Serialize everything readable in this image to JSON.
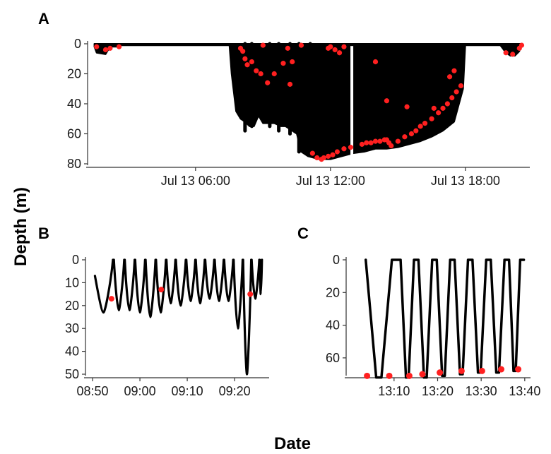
{
  "figure": {
    "ylabel": "Depth (m)",
    "xlabel": "Date"
  },
  "colors": {
    "line": "#000000",
    "point": "#ff2020"
  },
  "chart_data": [
    {
      "panel": "A",
      "type": "line",
      "x_unit": "hours since 00:00 on Jul 13",
      "xlim": [
        1.2,
        20.8
      ],
      "ylim": [
        0,
        80
      ],
      "y_reversed": true,
      "xticks": [
        6,
        12,
        18
      ],
      "xtick_labels": [
        "Jul 13 06:00",
        "Jul 13 12:00",
        "Jul 13 18:00"
      ],
      "yticks": [
        0,
        20,
        40,
        60,
        80
      ],
      "ytick_labels": [
        "0",
        "20",
        "40",
        "60",
        "80"
      ],
      "envelope": {
        "x": [
          1.5,
          1.6,
          2.0,
          2.2,
          2.5,
          2.7,
          3.0,
          4.0,
          5.0,
          6.0,
          7.0,
          7.5,
          7.6,
          7.8,
          8.0,
          8.2,
          8.4,
          8.6,
          8.8,
          9.0,
          9.5,
          9.8,
          10.0,
          10.5,
          10.7,
          11.0,
          11.5,
          12.0,
          12.5,
          13.0,
          13.5,
          14.0,
          14.5,
          15.0,
          15.5,
          16.0,
          16.5,
          17.0,
          17.5,
          17.9,
          18.0,
          19.0,
          19.5,
          19.8,
          20.0,
          20.2,
          20.4,
          20.5
        ],
        "y": [
          2,
          6,
          7,
          2,
          2,
          0,
          0,
          0,
          0,
          0,
          0,
          0,
          20,
          45,
          50,
          52,
          55,
          55,
          48,
          53,
          53,
          55,
          55,
          60,
          72,
          75,
          77,
          77,
          75,
          73,
          72,
          70,
          70,
          69,
          67,
          65,
          62,
          58,
          52,
          30,
          0,
          0,
          0,
          6,
          8,
          8,
          5,
          0
        ]
      },
      "spikes": [
        {
          "x": 8.2,
          "depth": 58
        },
        {
          "x": 8.5,
          "depth": 55
        },
        {
          "x": 9.3,
          "depth": 55
        },
        {
          "x": 9.7,
          "depth": 58
        },
        {
          "x": 10.2,
          "depth": 60
        },
        {
          "x": 10.6,
          "depth": 72
        },
        {
          "x": 11.1,
          "depth": 65
        }
      ],
      "gaps": [
        12.95
      ],
      "points": {
        "x": [
          1.6,
          2.0,
          2.2,
          2.6,
          8.0,
          8.1,
          8.2,
          8.3,
          8.5,
          8.7,
          9.0,
          9.5,
          9.9,
          10.1,
          10.3,
          10.7,
          11.2,
          11.4,
          11.6,
          11.7,
          11.9,
          12.1,
          12.3,
          12.6,
          12.9,
          13.4,
          13.6,
          13.8,
          14.0,
          14.2,
          14.4,
          14.5,
          14.6,
          14.7,
          15.0,
          15.3,
          15.6,
          15.8,
          16.0,
          16.2,
          16.5,
          16.8,
          17.0,
          17.2,
          17.4,
          17.6,
          17.8,
          11.9,
          12.0,
          12.2,
          12.4,
          12.6,
          14.0,
          14.5,
          15.4,
          16.6,
          17.3,
          17.5,
          19.8,
          20.1,
          20.4,
          20.5,
          8.9,
          9.2,
          10.2
        ],
        "y": [
          2,
          4,
          3,
          2,
          3,
          5,
          10,
          14,
          12,
          18,
          1,
          20,
          13,
          3,
          12,
          1,
          73,
          76,
          77,
          76,
          75,
          74,
          72,
          70,
          69,
          67,
          66,
          66,
          65,
          65,
          64,
          64,
          66,
          68,
          65,
          62,
          60,
          58,
          55,
          53,
          50,
          46,
          43,
          40,
          36,
          32,
          28,
          3,
          2,
          4,
          6,
          2,
          12,
          38,
          42,
          43,
          22,
          18,
          6,
          7,
          3,
          1,
          20,
          26,
          27
        ]
      }
    },
    {
      "panel": "B",
      "type": "line",
      "x_unit": "minutes since 08:50",
      "xlim": [
        -1.5,
        37
      ],
      "ylim": [
        0,
        50
      ],
      "y_reversed": true,
      "xticks": [
        0,
        10,
        20,
        30
      ],
      "xtick_labels": [
        "08:50",
        "09:00",
        "09:10",
        "09:20"
      ],
      "yticks": [
        0,
        10,
        20,
        30,
        40,
        50
      ],
      "ytick_labels": [
        "0",
        "10",
        "20",
        "30",
        "40",
        "50"
      ],
      "dives": {
        "start": [
          0.5,
          4.5,
          6.8,
          9.0,
          11.2,
          13.4,
          15.6,
          17.6,
          19.8,
          21.8,
          23.8,
          25.8,
          27.8,
          29.8,
          31.8,
          33.6,
          35.3
        ],
        "max_depth": [
          23,
          22,
          22,
          23,
          25,
          23,
          19,
          20,
          18,
          19,
          17,
          18,
          18,
          30,
          50,
          17,
          15
        ]
      },
      "points": {
        "x": [
          4.0,
          14.5,
          33.3
        ],
        "y": [
          17,
          13,
          15
        ]
      }
    },
    {
      "panel": "C",
      "type": "line",
      "x_unit": "minutes since 13:00",
      "xlim": [
        -1,
        41
      ],
      "ylim": [
        0,
        70
      ],
      "y_reversed": true,
      "xticks": [
        10,
        20,
        30,
        40
      ],
      "xtick_labels": [
        "13:10",
        "13:20",
        "13:30",
        "13:40"
      ],
      "yticks": [
        0,
        20,
        40,
        60
      ],
      "ytick_labels": [
        "0",
        "20",
        "40",
        "60"
      ],
      "dives": {
        "start": [
          3.5,
          11.5,
          15.6,
          19.8,
          23.9,
          28.0,
          32.2,
          36.4
        ],
        "bottom_depth": [
          72,
          72,
          72,
          71,
          70,
          69,
          69,
          68
        ]
      },
      "points": {
        "x": [
          3.8,
          8.9,
          13.5,
          16.5,
          20.5,
          25.5,
          30.2,
          34.6,
          38.5
        ],
        "y": [
          71,
          71,
          71,
          70,
          69,
          68,
          68,
          67,
          67
        ]
      }
    }
  ]
}
